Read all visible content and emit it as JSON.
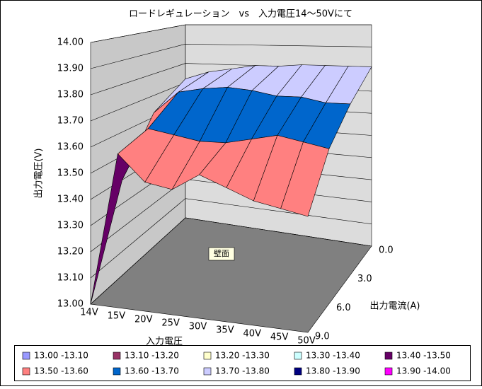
{
  "chart_data": {
    "type": "surface",
    "title": "ロードレギュレーション　vs　入力電圧14～50Vにて",
    "x_label": "入力電圧",
    "y_label": "出力電流(A)",
    "z_label": "出力電圧(V)",
    "wall_label": "壁面",
    "categories": [
      "14V",
      "15V",
      "20V",
      "25V",
      "30V",
      "35V",
      "40V",
      "45V",
      "50V"
    ],
    "depth_categories": [
      "0.0",
      "3.0",
      "6.0",
      "9.0"
    ],
    "values": [
      [
        13.72,
        13.76,
        13.78,
        13.8,
        13.8,
        13.81,
        13.81,
        13.81,
        13.81
      ],
      [
        13.62,
        13.72,
        13.74,
        13.75,
        13.74,
        13.72,
        13.72,
        13.7,
        13.7
      ],
      [
        13.4,
        13.62,
        13.6,
        13.58,
        13.58,
        13.6,
        13.62,
        13.6,
        13.58
      ],
      [
        13.0,
        13.58,
        13.48,
        13.46,
        13.52,
        13.48,
        13.44,
        13.42,
        13.4
      ]
    ],
    "zlim": [
      13,
      14
    ],
    "zticks": [
      {
        "value": 13,
        "label": "13.00"
      },
      {
        "value": 13.1,
        "label": "13.10"
      },
      {
        "value": 13.2,
        "label": "13.20"
      },
      {
        "value": 13.3,
        "label": "13.30"
      },
      {
        "value": 13.4,
        "label": "13.40"
      },
      {
        "value": 13.5,
        "label": "13.50"
      },
      {
        "value": 13.6,
        "label": "13.60"
      },
      {
        "value": 13.7,
        "label": "13.70"
      },
      {
        "value": 13.8,
        "label": "13.80"
      },
      {
        "value": 13.9,
        "label": "13.90"
      },
      {
        "value": 14,
        "label": "14.00"
      }
    ],
    "legend": [
      {
        "name": "13.00 -13.10",
        "color": "#9999ff"
      },
      {
        "name": "13.10 -13.20",
        "color": "#993366"
      },
      {
        "name": "13.20 -13.30",
        "color": "#ffffcc"
      },
      {
        "name": "13.30 -13.40",
        "color": "#ccffff"
      },
      {
        "name": "13.40 -13.50",
        "color": "#660066"
      },
      {
        "name": "13.50 -13.60",
        "color": "#ff8080"
      },
      {
        "name": "13.60 -13.70",
        "color": "#0066cc"
      },
      {
        "name": "13.70 -13.80",
        "color": "#ccccff"
      },
      {
        "name": "13.80 -13.90",
        "color": "#000080"
      },
      {
        "name": "13.90 -14.00",
        "color": "#ff00ff"
      }
    ]
  }
}
